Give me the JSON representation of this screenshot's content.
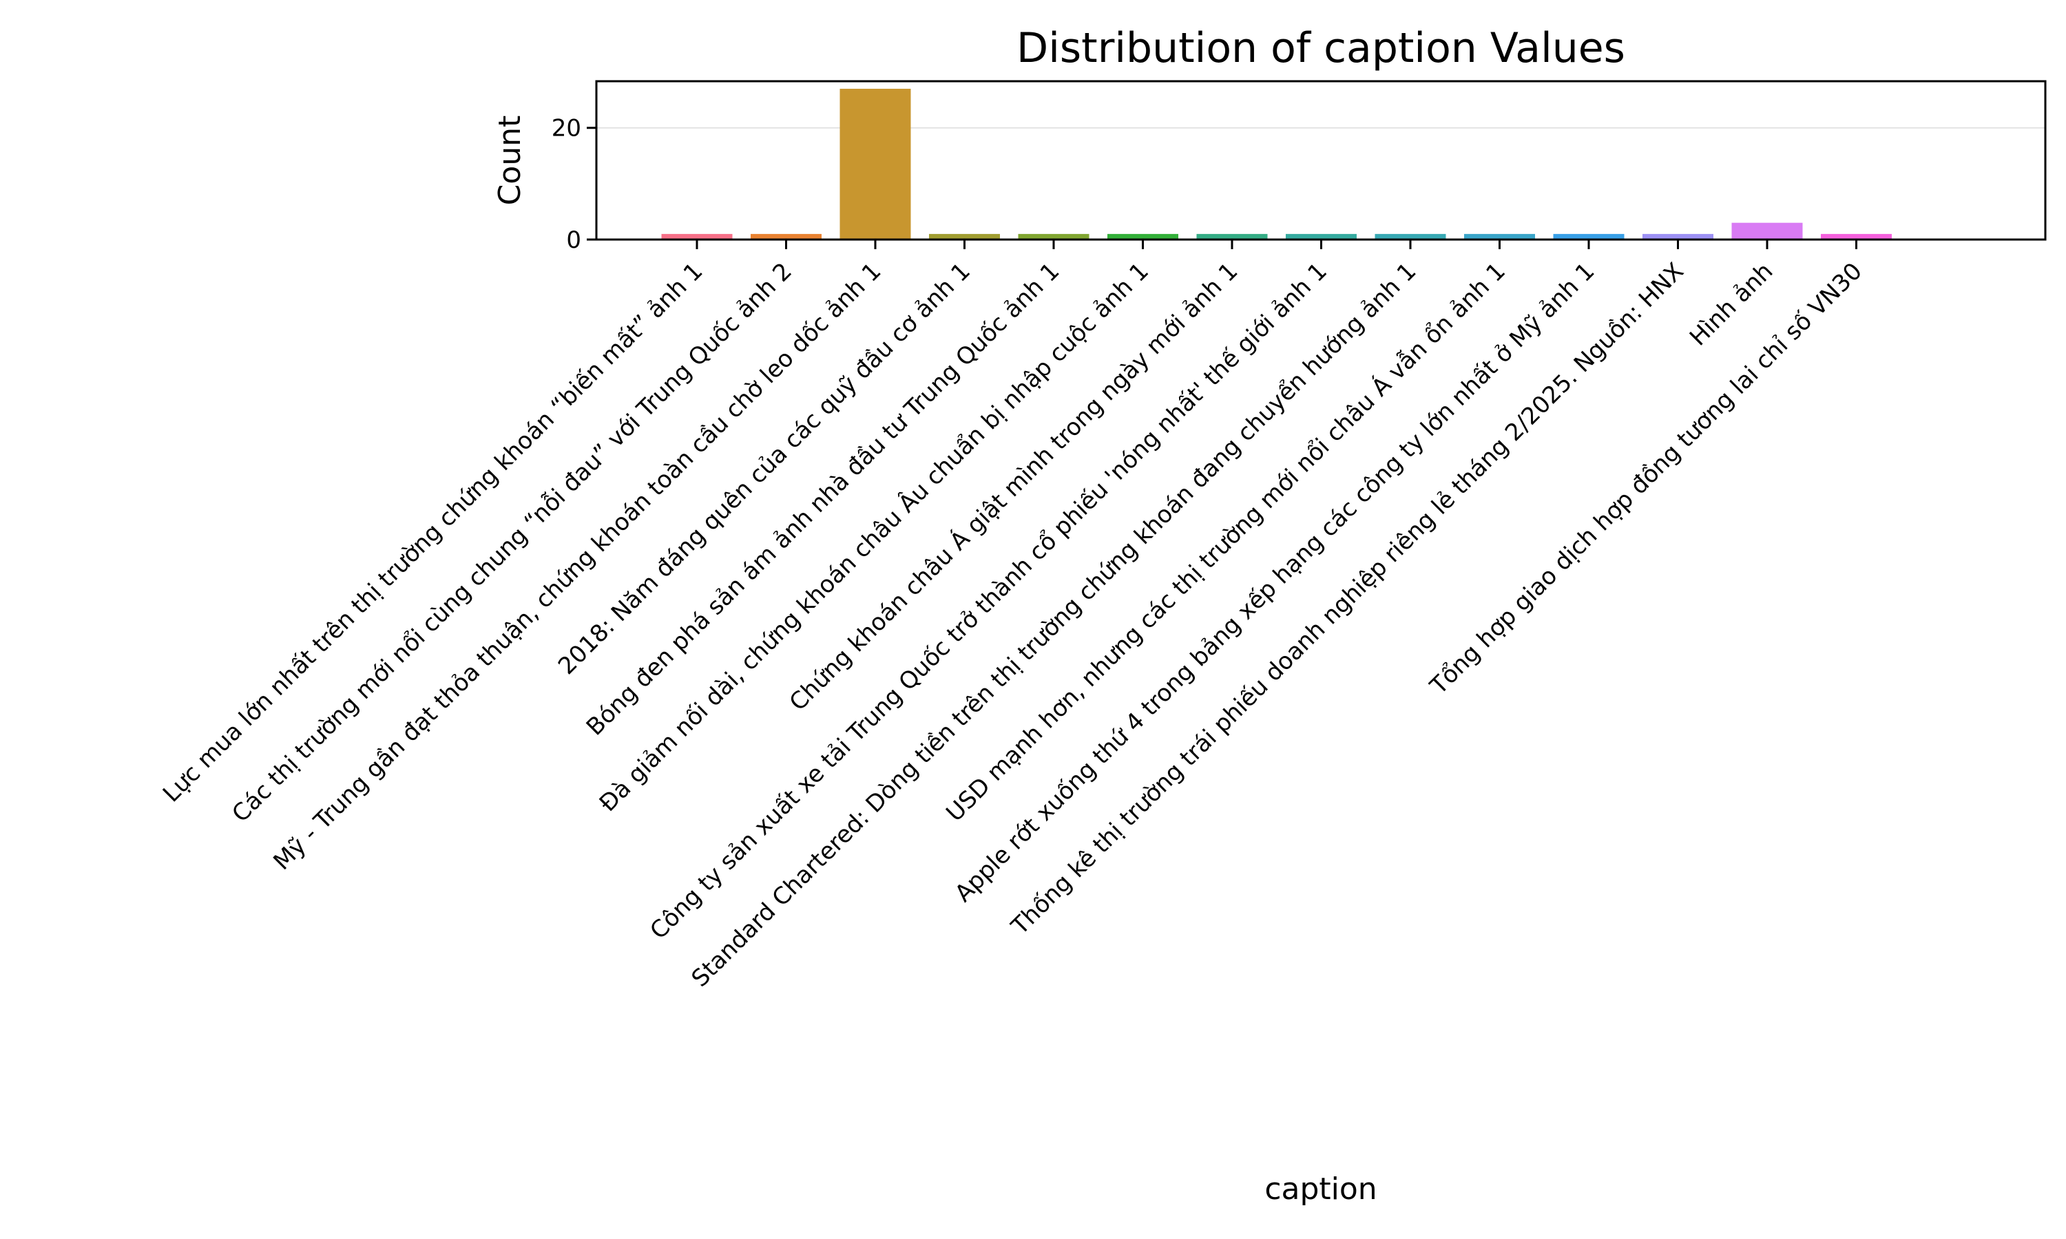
{
  "chart_data": {
    "type": "bar",
    "title": "Distribution of caption Values",
    "xlabel": "caption",
    "ylabel": "Count",
    "ylim": [
      0,
      28.35
    ],
    "yticks": [
      0,
      20
    ],
    "grid": "y",
    "categories": [
      "Lực mua lớn nhất trên thị trường chứng khoán “biến mất” ảnh 1",
      "Các thị trường mới nổi cùng chung “nỗi đau” với Trung Quốc ảnh 2",
      "Mỹ - Trung gần đạt thỏa thuận, chứng khoán toàn cầu chờ leo dốc ảnh 1",
      "2018: Năm đáng quên của các quỹ đầu cơ ảnh 1",
      "Bóng đen phá sản ám ảnh nhà đầu tư Trung Quốc ảnh 1",
      "Đà giảm nối dài, chứng khoán châu Âu chuẩn bị nhập cuộc ảnh 1",
      "Chứng khoán châu Á giật mình trong ngày mới ảnh 1",
      "Công ty sản xuất xe tải Trung Quốc trở thành cổ phiếu 'nóng nhất' thế giới ảnh 1",
      "Standard Chartered: Dòng tiền trên thị trường chứng khoán đang chuyển hướng ảnh 1",
      "USD mạnh hơn, nhưng các thị trường mới nổi châu Á vẫn ổn ảnh 1",
      "Apple rớt xuống thứ 4 trong bảng xếp hạng các công ty lớn nhất ở Mỹ ảnh 1",
      "Thống kê thị trường trái phiếu doanh nghiệp riêng lẻ tháng 2/2025. Nguồn: HNX",
      "Hình ảnh",
      "Tổng hợp giao dịch hợp đồng tương lai chỉ số VN30"
    ],
    "values": [
      1,
      1,
      27,
      1,
      1,
      1,
      1,
      1,
      1,
      1,
      1,
      1,
      3,
      1
    ],
    "colors": [
      "#f77189",
      "#e98332",
      "#c8962f",
      "#a19e31",
      "#81a631",
      "#33b039",
      "#35ad86",
      "#36aba0",
      "#38a9b4",
      "#3aa5c9",
      "#39a0e7",
      "#9d91f4",
      "#d97bf4",
      "#f561dd",
      "#f66cb1"
    ]
  }
}
